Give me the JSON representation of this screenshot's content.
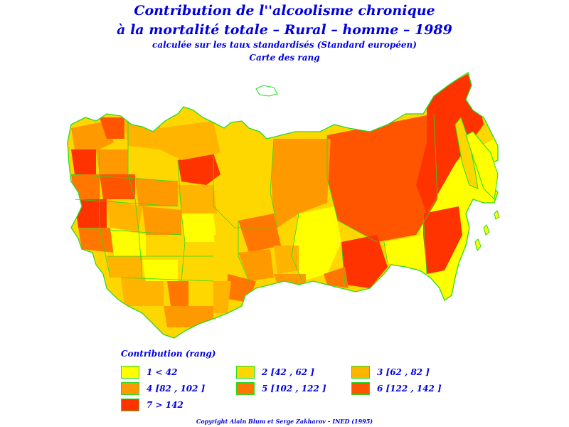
{
  "title": {
    "line1": "Contribution de l''alcoolisme chronique",
    "line2": "à la mortalité totale  –  Rural  –  homme  –  1989",
    "line3": "calculée sur les taux standardisés (Standard européen)",
    "line4": "Carte des rang"
  },
  "legend": {
    "title": "Contribution (rang)",
    "items": [
      {
        "label": "1  <  42",
        "color": "#ffff00"
      },
      {
        "label": "2 [42  ,  62 ]",
        "color": "#ffd700"
      },
      {
        "label": "3 [62  ,  82 ]",
        "color": "#ffb400"
      },
      {
        "label": "4 [82  ,  102 ]",
        "color": "#ff9900"
      },
      {
        "label": "5 [102  ,  122 ]",
        "color": "#ff7700"
      },
      {
        "label": "6 [122  ,  142 ]",
        "color": "#ff5500"
      },
      {
        "label": "7  >  142",
        "color": "#ff3300"
      }
    ]
  },
  "border_color": "#22dd22",
  "copyright": "Copyright Alain Blum et Serge Zakharov  –  INED (1995)"
}
